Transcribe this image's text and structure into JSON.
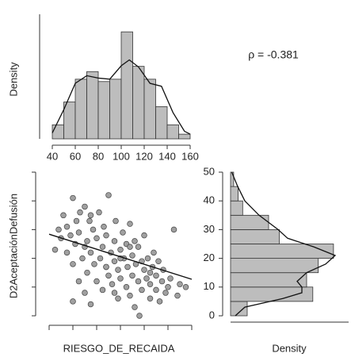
{
  "chart_data": [
    {
      "type": "histogram",
      "orientation": "vertical",
      "y_label": "Density",
      "bins": [
        40,
        50,
        60,
        70,
        80,
        90,
        100,
        110,
        120,
        130,
        140,
        150,
        160
      ],
      "values": [
        0.0024,
        0.0063,
        0.0102,
        0.0115,
        0.0098,
        0.0102,
        0.0183,
        0.0124,
        0.0102,
        0.0055,
        0.0024,
        0.0008
      ],
      "density": {
        "x": [
          40,
          50,
          60,
          70,
          80,
          90,
          100,
          107,
          115,
          125,
          135,
          145,
          155,
          160
        ],
        "values": [
          0.001,
          0.005,
          0.0095,
          0.0108,
          0.0104,
          0.0102,
          0.0125,
          0.0135,
          0.0123,
          0.0095,
          0.009,
          0.0045,
          0.0013,
          0.0008
        ]
      },
      "xlim": [
        40,
        160
      ],
      "xticks": [
        40,
        60,
        80,
        100,
        120,
        140,
        160
      ],
      "ylim": [
        0,
        0.019
      ],
      "color": "#bdbdbd"
    },
    {
      "type": "scatter",
      "x_label": "RIESGO_DE_RECAIDA",
      "y_label": "D2AceptaciónDefusión",
      "annotation": "ρ = -0.381",
      "x": [
        45,
        48,
        50,
        52,
        55,
        55,
        58,
        60,
        60,
        62,
        63,
        65,
        65,
        66,
        68,
        70,
        70,
        72,
        72,
        74,
        75,
        75,
        77,
        78,
        80,
        80,
        82,
        83,
        85,
        85,
        86,
        88,
        88,
        90,
        90,
        92,
        93,
        95,
        95,
        96,
        98,
        98,
        100,
        100,
        102,
        103,
        105,
        105,
        106,
        108,
        108,
        110,
        110,
        112,
        113,
        115,
        115,
        116,
        118,
        118,
        120,
        120,
        122,
        123,
        125,
        125,
        127,
        128,
        130,
        130,
        132,
        133,
        135,
        136,
        138,
        140,
        142,
        145,
        148,
        150,
        155,
        60,
        75,
        88,
        100,
        112,
        125,
        70,
        95,
        108
      ],
      "values": [
        23,
        30,
        27,
        35,
        22,
        31,
        28,
        41,
        18,
        25,
        33,
        12,
        29,
        36,
        20,
        38,
        8,
        26,
        15,
        33,
        22,
        4,
        30,
        18,
        27,
        12,
        36,
        20,
        24,
        9,
        31,
        17,
        28,
        14,
        42,
        22,
        11,
        26,
        19,
        33,
        16,
        6,
        23,
        13,
        29,
        20,
        10,
        25,
        17,
        32,
        7,
        21,
        14,
        26,
        18,
        12,
        24,
        0,
        19,
        9,
        16,
        28,
        13,
        20,
        11,
        6,
        17,
        22,
        14,
        9,
        19,
        5,
        12,
        16,
        8,
        10,
        13,
        30,
        7,
        11,
        10,
        5,
        35,
        17,
        20,
        3,
        15,
        24,
        8,
        24
      ],
      "regression": {
        "x": [
          40,
          160
        ],
        "values": [
          28.4,
          12.7
        ]
      },
      "xlim": [
        40,
        160
      ],
      "xticks": [
        40,
        60,
        80,
        100,
        120,
        140,
        160
      ],
      "ylim": [
        0,
        50
      ],
      "yticks": [
        0,
        10,
        20,
        30,
        40,
        50
      ],
      "color": "#a0a0a0"
    },
    {
      "type": "histogram",
      "orientation": "horizontal",
      "x_label": "Density",
      "bins": [
        0,
        5,
        10,
        15,
        20,
        25,
        30,
        35,
        40,
        45,
        50
      ],
      "values": [
        0.007,
        0.0346,
        0.032,
        0.0369,
        0.0433,
        0.0205,
        0.016,
        0.0051,
        0.0032,
        0.0013
      ],
      "density": {
        "x": [
          0,
          3,
          6,
          8,
          10,
          12,
          15,
          18,
          21,
          24,
          27,
          30,
          35,
          40,
          45,
          50
        ],
        "values": [
          0.002,
          0.006,
          0.022,
          0.03,
          0.03,
          0.028,
          0.032,
          0.04,
          0.044,
          0.035,
          0.024,
          0.02,
          0.012,
          0.006,
          0.003,
          0.0005
        ]
      },
      "ylim": [
        0,
        50
      ],
      "yticks": [
        0,
        10,
        20,
        30,
        40,
        50
      ],
      "xlim": [
        0,
        0.045
      ],
      "color": "#bdbdbd"
    }
  ]
}
